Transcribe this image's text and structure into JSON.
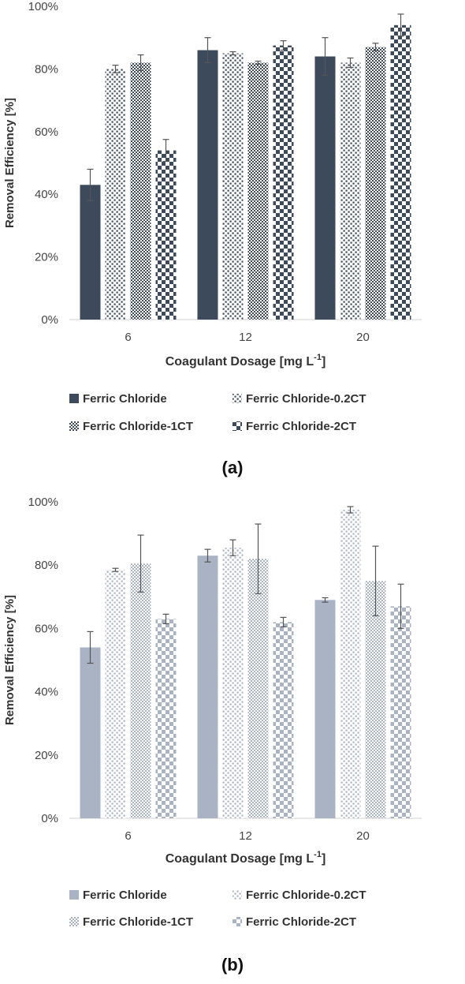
{
  "chart_data": [
    {
      "type": "bar",
      "panel_label": "(a)",
      "categories": [
        "6",
        "12",
        "20"
      ],
      "xlabel": "Coagulant Dosage [mg L",
      "xlabel_sup": "-1",
      "xlabel_end": "]",
      "ylabel": "Removal Efficiency [%]",
      "ylim": [
        0,
        100
      ],
      "yticks": [
        "0%",
        "20%",
        "40%",
        "60%",
        "80%",
        "100%"
      ],
      "legend_position": "bottom",
      "color": "#3c4a5c",
      "series": [
        {
          "name": "Ferric Chloride",
          "values": [
            43,
            86,
            84
          ],
          "errors": [
            5,
            4,
            6
          ],
          "pattern": "solid"
        },
        {
          "name": "Ferric Chloride-0.2CT",
          "values": [
            80,
            85,
            82
          ],
          "errors": [
            1.2,
            0.5,
            1.5
          ],
          "pattern": "dots"
        },
        {
          "name": "Ferric Chloride-1CT",
          "values": [
            82,
            82,
            87
          ],
          "errors": [
            2.5,
            0.5,
            1.2
          ],
          "pattern": "grid"
        },
        {
          "name": "Ferric Chloride-2CT",
          "values": [
            54,
            87.5,
            94
          ],
          "errors": [
            3.5,
            1.5,
            3.5
          ],
          "pattern": "checker"
        }
      ]
    },
    {
      "type": "bar",
      "panel_label": "(b)",
      "categories": [
        "6",
        "12",
        "20"
      ],
      "xlabel": "Coagulant Dosage [mg L",
      "xlabel_sup": "-1",
      "xlabel_end": "]",
      "ylabel": "Removal Efficiency [%]",
      "ylim": [
        0,
        100
      ],
      "yticks": [
        "0%",
        "20%",
        "40%",
        "60%",
        "80%",
        "100%"
      ],
      "legend_position": "bottom",
      "color": "#a9b3c4",
      "series": [
        {
          "name": "Ferric Chloride",
          "values": [
            54,
            83,
            69
          ],
          "errors": [
            5,
            2,
            0.7
          ],
          "pattern": "solid"
        },
        {
          "name": "Ferric Chloride-0.2CT",
          "values": [
            78.5,
            85.5,
            97.5
          ],
          "errors": [
            0.5,
            2.5,
            1
          ],
          "pattern": "dots"
        },
        {
          "name": "Ferric Chloride-1CT",
          "values": [
            80.5,
            82,
            75
          ],
          "errors": [
            9,
            11,
            11
          ],
          "pattern": "grid"
        },
        {
          "name": "Ferric Chloride-2CT",
          "values": [
            63,
            62,
            67
          ],
          "errors": [
            1.5,
            1.5,
            7
          ],
          "pattern": "checker"
        }
      ]
    }
  ]
}
